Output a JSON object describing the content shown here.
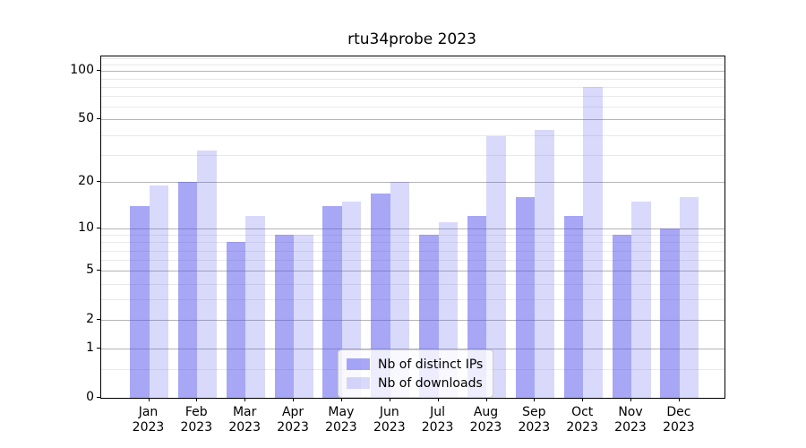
{
  "title": "rtu34probe 2023",
  "chart_data": {
    "type": "bar",
    "categories": [
      "Jan",
      "Feb",
      "Mar",
      "Apr",
      "May",
      "Jun",
      "Jul",
      "Aug",
      "Sep",
      "Oct",
      "Nov",
      "Dec"
    ],
    "category_year": "2023",
    "series": [
      {
        "name": "Nb of distinct IPs",
        "values": [
          14,
          20,
          8,
          9,
          14,
          17,
          9,
          12,
          16,
          12,
          9,
          10
        ],
        "color": "rgba(80,80,238,0.5)"
      },
      {
        "name": "Nb of downloads",
        "values": [
          19,
          32,
          12,
          9,
          15,
          20,
          11,
          39,
          43,
          80,
          15,
          16
        ],
        "color": "rgba(80,80,238,0.22)"
      }
    ],
    "xlabel": "",
    "ylabel": "",
    "yscale": "log1p",
    "ylim": [
      0,
      127
    ],
    "yticks": [
      0,
      1,
      2,
      5,
      10,
      20,
      50,
      100
    ],
    "minor_gridlines": [
      0.5,
      3,
      4,
      6,
      7,
      8,
      9,
      30,
      40,
      60,
      70,
      80,
      90,
      110,
      120
    ],
    "grid": true,
    "legend_position": "lower center"
  },
  "colors": {
    "bar_primary": "rgba(80,80,238,0.5)",
    "bar_secondary": "rgba(80,80,238,0.22)",
    "grid_major": "#b4b4b4",
    "grid_minor": "#e9e9e9",
    "spine": "#000000",
    "legend_border": "#cccccc"
  }
}
